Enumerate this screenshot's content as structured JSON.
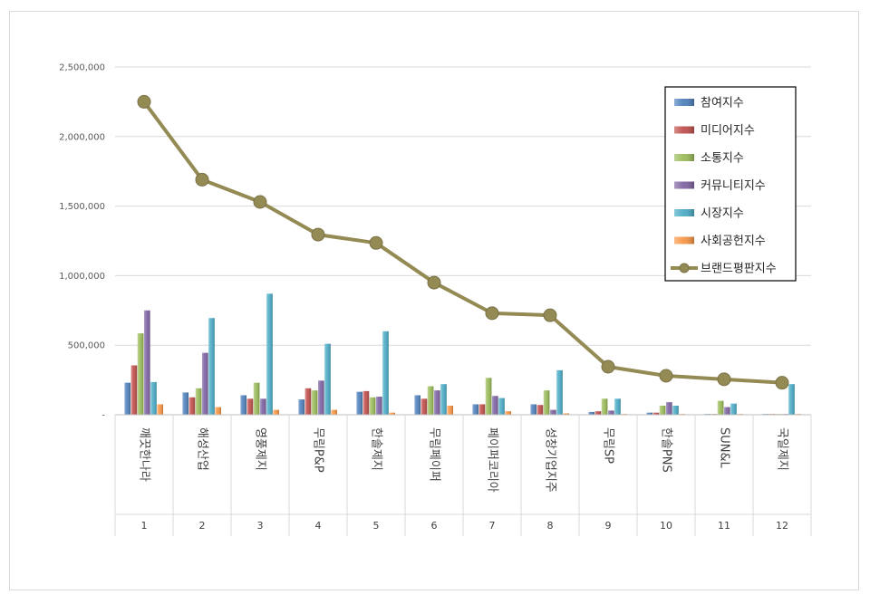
{
  "chart_data": {
    "type": "bar",
    "title": "",
    "xlabel": "",
    "ylabel": "",
    "ylim": [
      0,
      2500000
    ],
    "yticks": [
      "-",
      "500,000",
      "1,000,000",
      "1,500,000",
      "2,000,000",
      "2,500,000"
    ],
    "grid": true,
    "legend_position": "right",
    "categories": [
      "깨끗한나라",
      "해성산업",
      "영풍제지",
      "무림P&P",
      "한솔제지",
      "무림페이퍼",
      "페이퍼코리아",
      "성창기업지주",
      "무림SP",
      "한솔PNS",
      "SUN&L",
      "국일제지"
    ],
    "ranks": [
      "1",
      "2",
      "3",
      "4",
      "5",
      "6",
      "7",
      "8",
      "9",
      "10",
      "11",
      "12"
    ],
    "series": [
      {
        "name": "참여지수",
        "kind": "bar",
        "color": "#4f81bd",
        "values": [
          230000,
          160000,
          140000,
          110000,
          165000,
          140000,
          75000,
          75000,
          20000,
          15000,
          5000,
          3000
        ]
      },
      {
        "name": "미디어지수",
        "kind": "bar",
        "color": "#c0504d",
        "values": [
          355000,
          125000,
          115000,
          190000,
          170000,
          115000,
          75000,
          70000,
          25000,
          15000,
          5000,
          3000
        ]
      },
      {
        "name": "소통지수",
        "kind": "bar",
        "color": "#9bbb59",
        "values": [
          585000,
          190000,
          230000,
          175000,
          125000,
          205000,
          265000,
          175000,
          115000,
          65000,
          100000,
          3000
        ]
      },
      {
        "name": "커뮤니티지수",
        "kind": "bar",
        "color": "#8064a2",
        "values": [
          750000,
          445000,
          115000,
          245000,
          130000,
          175000,
          135000,
          35000,
          30000,
          90000,
          55000,
          3000
        ]
      },
      {
        "name": "시장지수",
        "kind": "bar",
        "color": "#4bacc6",
        "values": [
          235000,
          695000,
          870000,
          510000,
          600000,
          220000,
          120000,
          320000,
          115000,
          65000,
          80000,
          220000
        ]
      },
      {
        "name": "사회공헌지수",
        "kind": "bar",
        "color": "#f79646",
        "values": [
          75000,
          55000,
          35000,
          35000,
          15000,
          65000,
          25000,
          10000,
          5000,
          5000,
          5000,
          3000
        ]
      },
      {
        "name": "브랜드평판지수",
        "kind": "line",
        "color": "#948a54",
        "values": [
          2250000,
          1690000,
          1530000,
          1295000,
          1235000,
          950000,
          730000,
          715000,
          345000,
          280000,
          255000,
          230000
        ]
      }
    ]
  }
}
